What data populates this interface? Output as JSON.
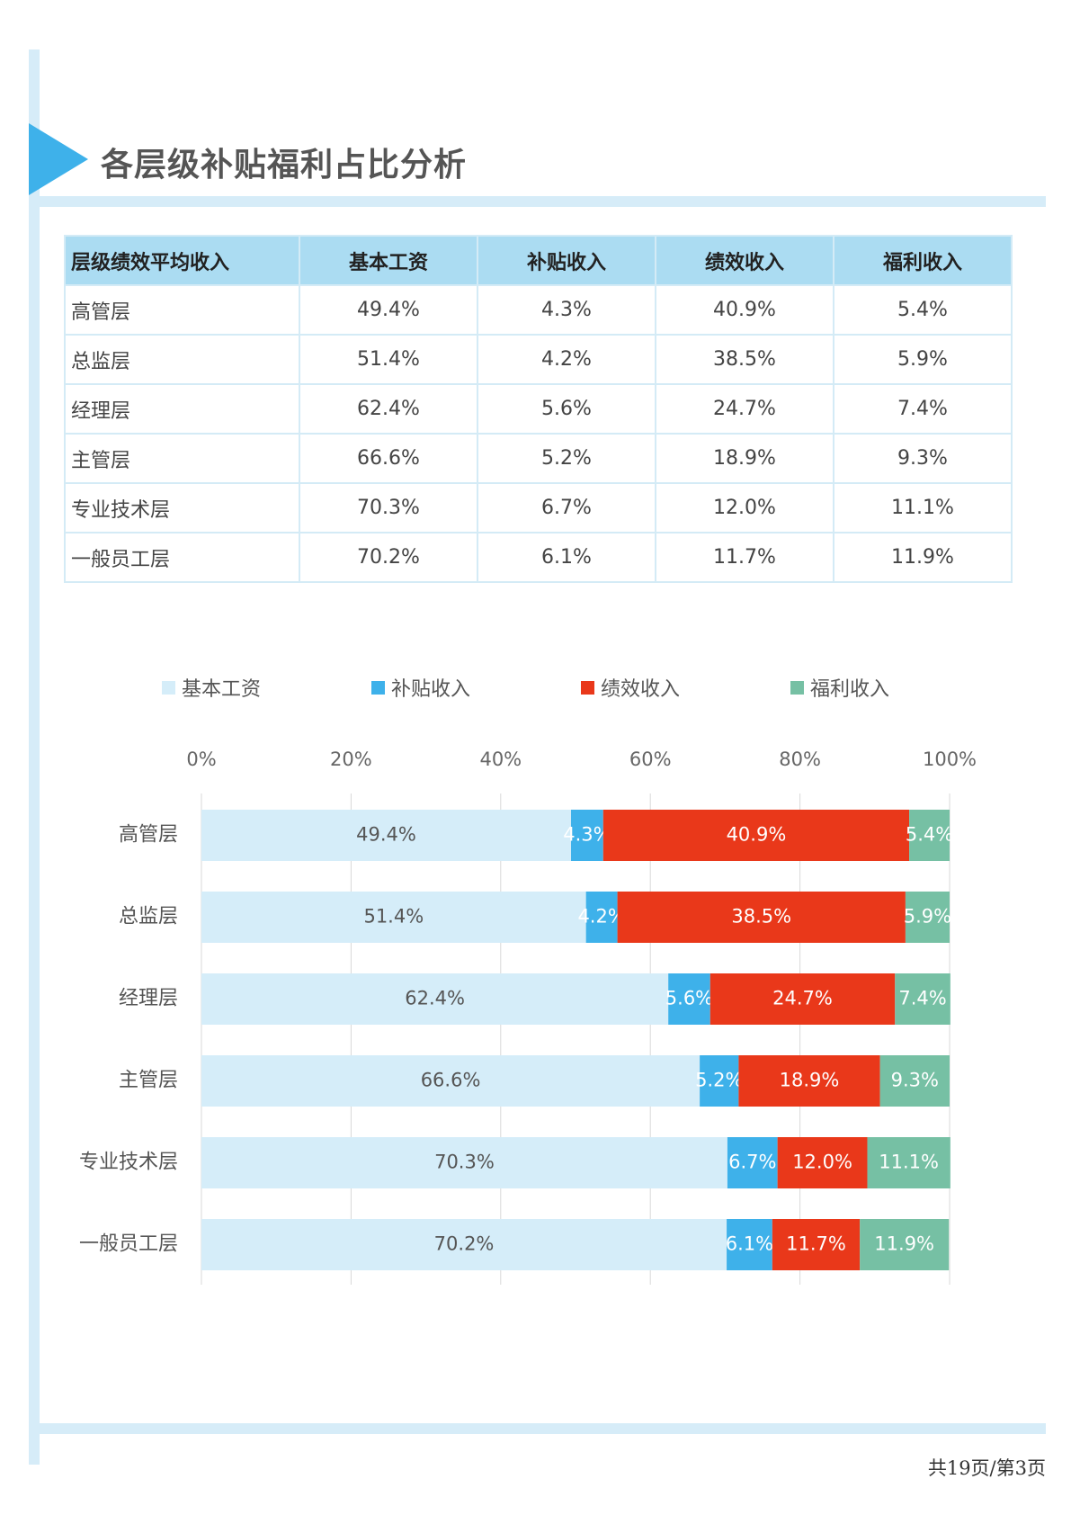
{
  "page_title": "各层级补贴福利占比分析",
  "table": {
    "headers": [
      "层级绩效平均收入",
      "基本工资",
      "补贴收入",
      "绩效收入",
      "福利收入"
    ],
    "rows": [
      [
        "高管层",
        "49.4%",
        "4.3%",
        "40.9%",
        "5.4%"
      ],
      [
        "总监层",
        "51.4%",
        "4.2%",
        "38.5%",
        "5.9%"
      ],
      [
        "经理层",
        "62.4%",
        "5.6%",
        "24.7%",
        "7.4%"
      ],
      [
        "主管层",
        "66.6%",
        "5.2%",
        "18.9%",
        "9.3%"
      ],
      [
        "专业技术层",
        "70.3%",
        "6.7%",
        "12.0%",
        "11.1%"
      ],
      [
        "一般员工层",
        "70.2%",
        "6.1%",
        "11.7%",
        "11.9%"
      ]
    ]
  },
  "chart_data": {
    "type": "bar",
    "orientation": "horizontal",
    "stacked": "percent",
    "categories": [
      "高管层",
      "总监层",
      "经理层",
      "主管层",
      "专业技术层",
      "一般员工层"
    ],
    "series": [
      {
        "name": "基本工资",
        "color": "#d5edf9",
        "label_color": "#555555",
        "values": [
          49.4,
          51.4,
          62.4,
          66.6,
          70.3,
          70.2
        ]
      },
      {
        "name": "补贴收入",
        "color": "#3eb1ea",
        "label_color": "#ffffff",
        "values": [
          4.3,
          4.2,
          5.6,
          5.2,
          6.7,
          6.1
        ]
      },
      {
        "name": "绩效收入",
        "color": "#e9381a",
        "label_color": "#ffffff",
        "values": [
          40.9,
          38.5,
          24.7,
          18.9,
          12.0,
          11.7
        ]
      },
      {
        "name": "福利收入",
        "color": "#76c0a4",
        "label_color": "#ffffff",
        "values": [
          5.4,
          5.9,
          7.4,
          9.3,
          11.1,
          11.9
        ]
      }
    ],
    "xlim": [
      0,
      100
    ],
    "x_ticks": [
      "0%",
      "20%",
      "40%",
      "60%",
      "80%",
      "100%"
    ],
    "axis_position": "top",
    "grid": true,
    "legend_position": "top"
  },
  "footer": {
    "page_info": "共19页/第3页"
  }
}
